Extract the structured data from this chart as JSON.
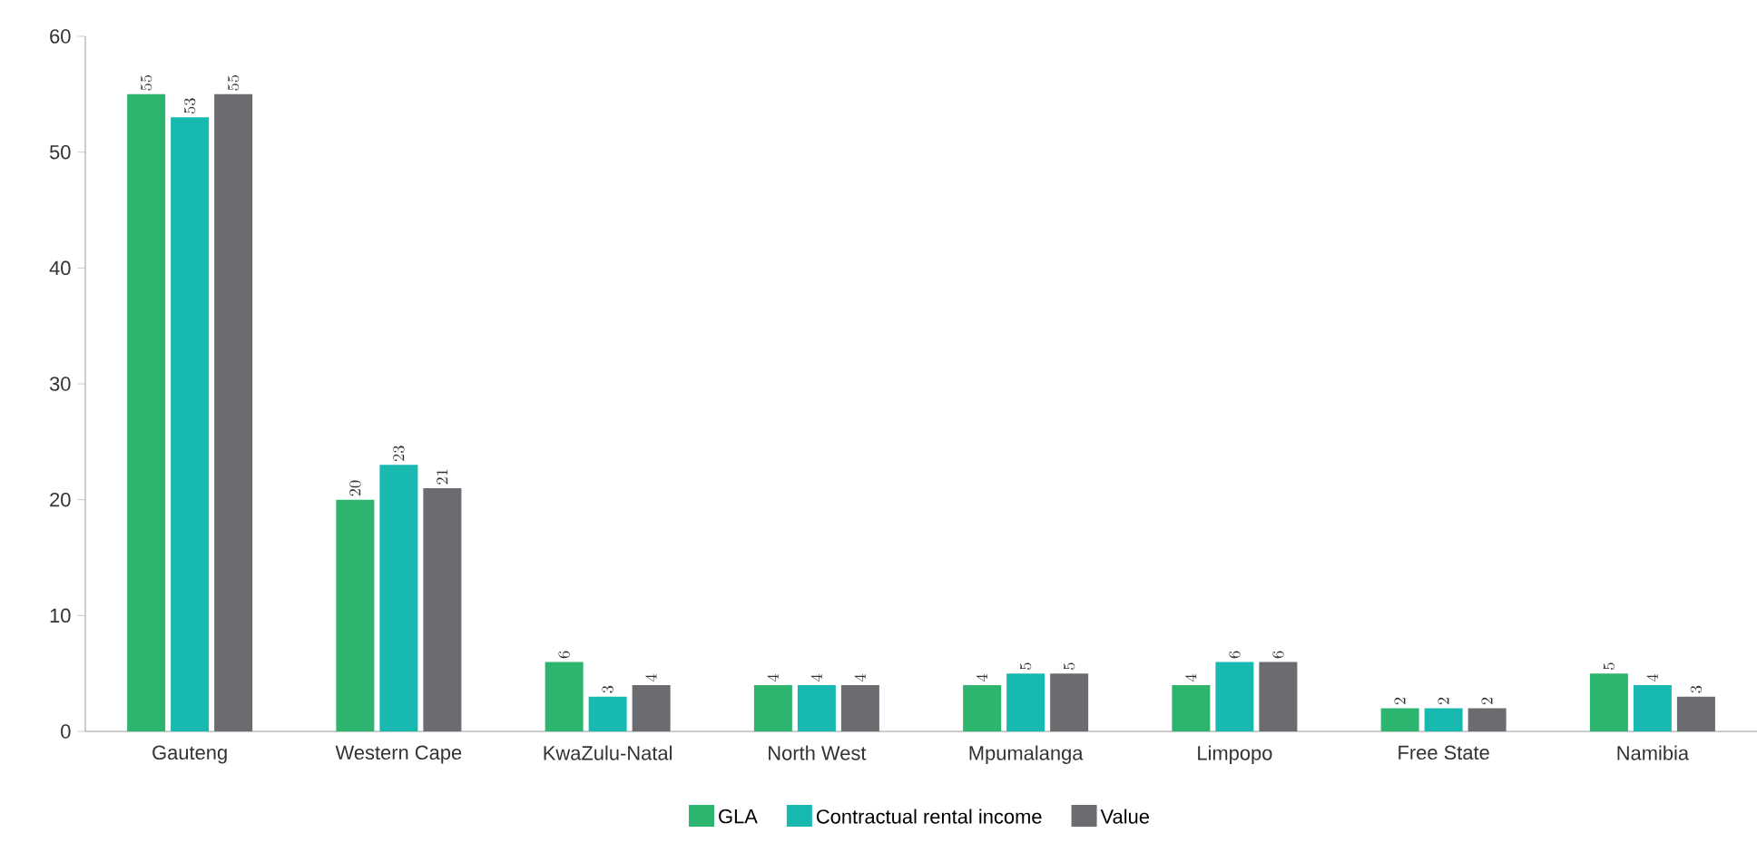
{
  "chart_data": {
    "type": "bar",
    "categories": [
      "Gauteng",
      "Western Cape",
      "KwaZulu-Natal",
      "North West",
      "Mpumalanga",
      "Limpopo",
      "Free State",
      "Namibia"
    ],
    "series": [
      {
        "name": "GLA",
        "color": "#2db56f",
        "values": [
          55,
          20,
          6,
          4,
          4,
          4,
          2,
          5
        ]
      },
      {
        "name": "Contractual rental income",
        "color": "#18b9b1",
        "values": [
          53,
          23,
          3,
          4,
          5,
          6,
          2,
          4
        ]
      },
      {
        "name": "Value",
        "color": "#6b6c70",
        "values": [
          55,
          21,
          4,
          4,
          5,
          6,
          2,
          3
        ]
      }
    ],
    "ylim": [
      0,
      60
    ],
    "yticks": [
      0,
      10,
      20,
      30,
      40,
      50,
      60
    ],
    "data_labels": true,
    "legend": "bottom"
  }
}
